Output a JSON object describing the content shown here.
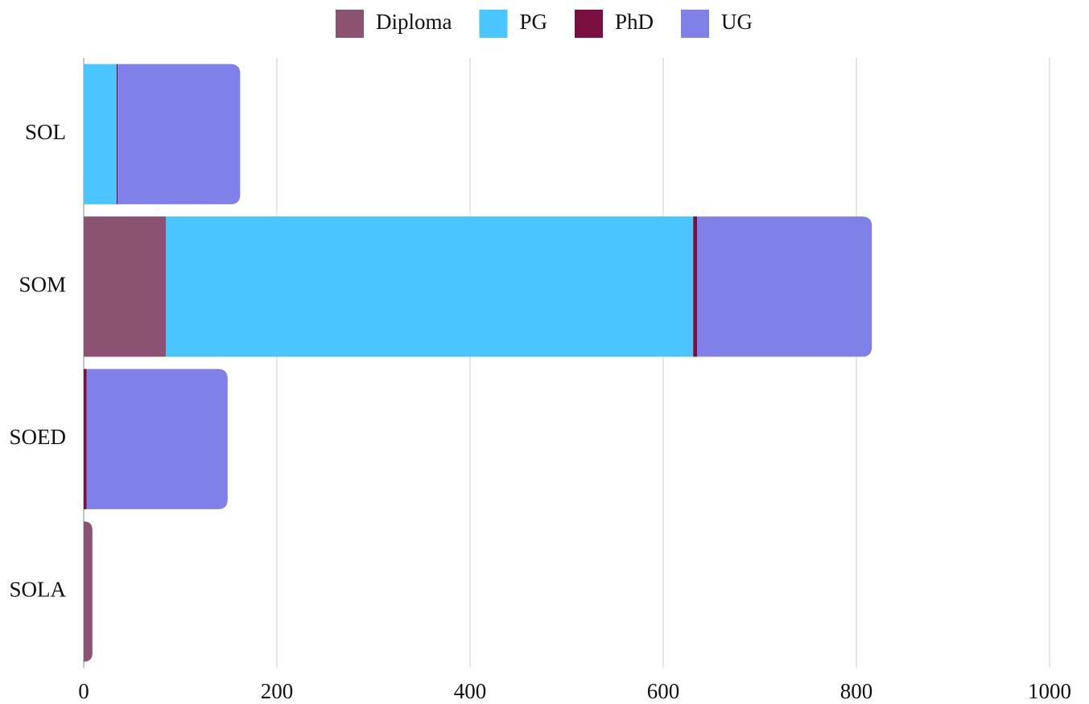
{
  "chart_data": {
    "type": "stacked-bar-horizontal",
    "categories": [
      "SOL",
      "SOM",
      "SOED",
      "SOLA"
    ],
    "series": [
      {
        "name": "Diploma",
        "color": "#8b5370",
        "values": [
          0,
          85,
          0,
          9
        ]
      },
      {
        "name": "PG",
        "color": "#4ac5fd",
        "values": [
          34,
          546,
          0,
          0
        ]
      },
      {
        "name": "PhD",
        "color": "#7a1040",
        "values": [
          1,
          4,
          3,
          0
        ]
      },
      {
        "name": "UG",
        "color": "#7f80e8",
        "values": [
          127,
          181,
          146,
          0
        ]
      }
    ],
    "xlim": [
      0,
      1000
    ],
    "xticks": [
      0,
      200,
      400,
      600,
      800,
      1000
    ],
    "grid": true,
    "legend": "top"
  }
}
